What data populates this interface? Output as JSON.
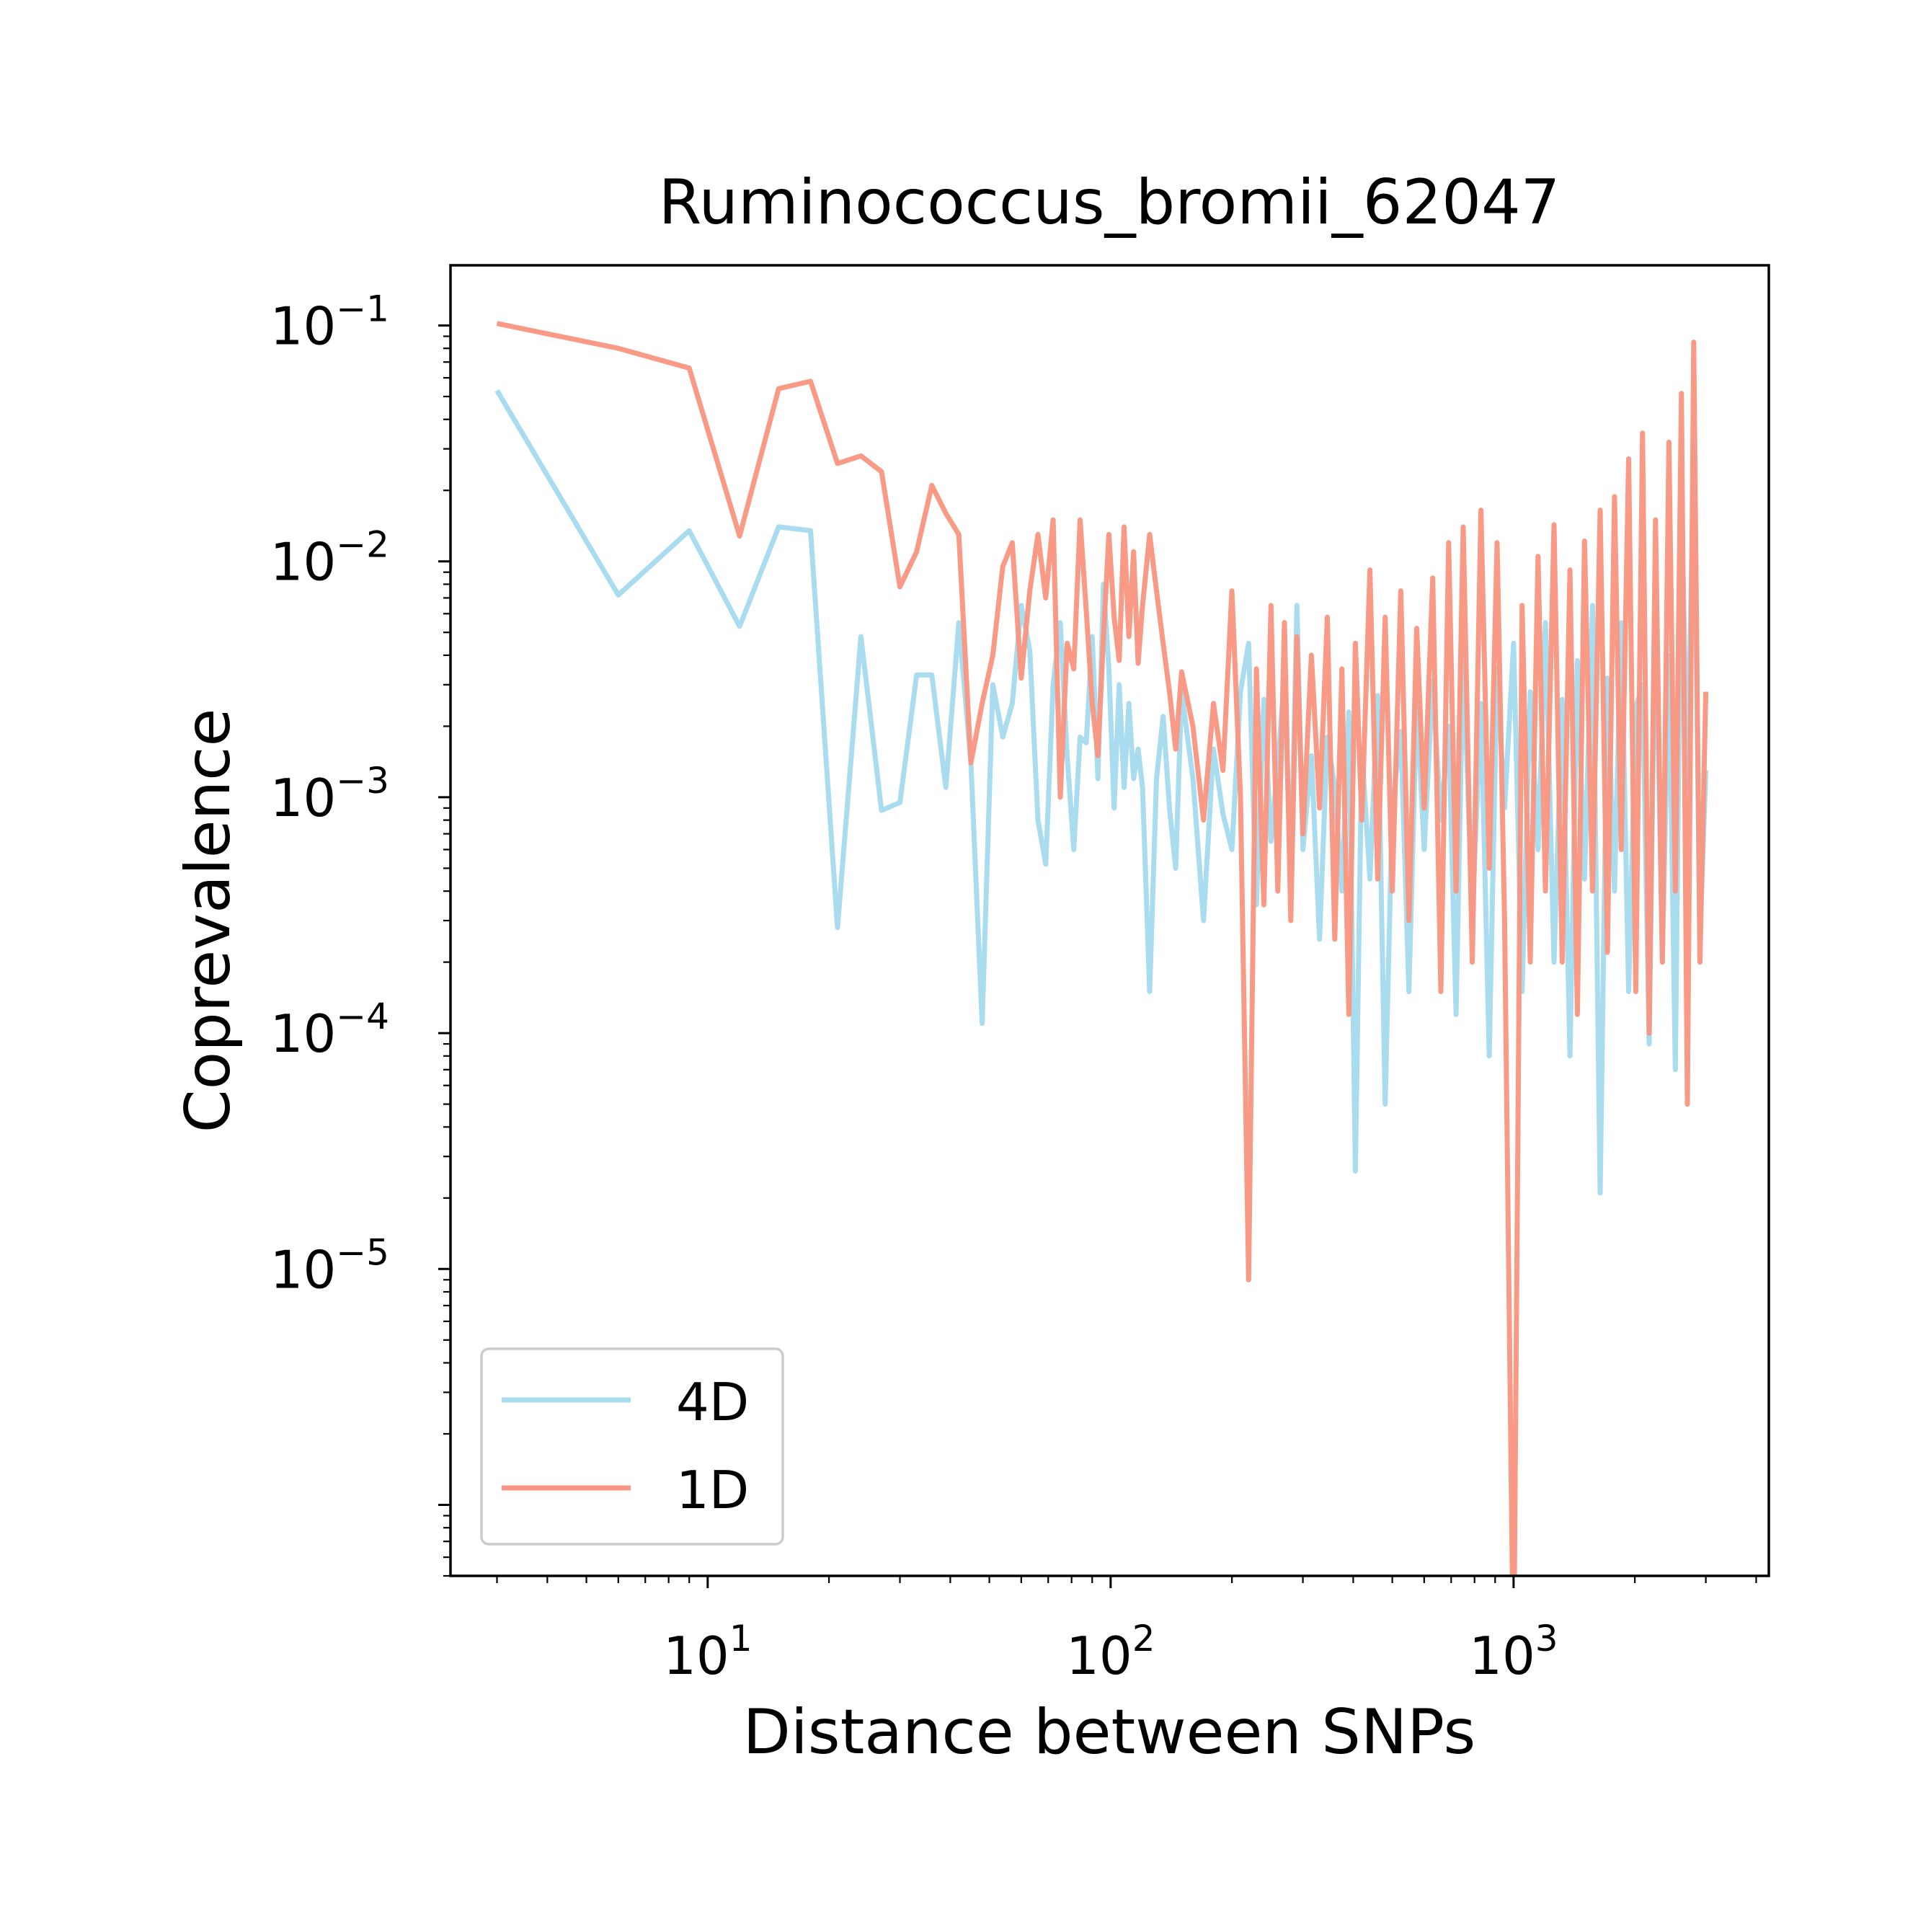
{
  "chart_data": {
    "type": "line",
    "title": "Ruminococcus_bromii_62047",
    "xlabel": "Distance between SNPs",
    "ylabel": "Coprevalence",
    "x_scale": "log",
    "y_scale": "log",
    "xlim": [
      2.3,
      4300
    ],
    "ylim": [
      5e-07,
      0.18
    ],
    "x_ticks": [
      {
        "value": 10,
        "base": "10",
        "exp": "1"
      },
      {
        "value": 100,
        "base": "10",
        "exp": "2"
      },
      {
        "value": 1000,
        "base": "10",
        "exp": "3"
      }
    ],
    "y_ticks": [
      {
        "value": 0.1,
        "base": "10",
        "exp": "−1"
      },
      {
        "value": 0.01,
        "base": "10",
        "exp": "−2"
      },
      {
        "value": 0.001,
        "base": "10",
        "exp": "−3"
      },
      {
        "value": 0.0001,
        "base": "10",
        "exp": "−4"
      },
      {
        "value": 1e-05,
        "base": "10",
        "exp": "−5"
      }
    ],
    "grid": false,
    "legend_position": "lower-left",
    "series": [
      {
        "name": "4D",
        "color": "#a8dcee",
        "x": [
          3,
          6,
          9,
          12,
          15,
          18,
          21,
          24,
          27,
          30,
          33,
          36,
          39,
          42,
          45,
          48,
          51,
          54,
          57,
          60,
          63,
          66,
          69,
          72,
          75,
          78,
          81,
          84,
          87,
          90,
          93,
          96,
          99,
          102,
          105,
          108,
          111,
          114,
          117,
          120,
          125,
          130,
          135,
          140,
          145,
          150,
          160,
          170,
          180,
          190,
          200,
          210,
          220,
          230,
          240,
          250,
          260,
          270,
          280,
          290,
          300,
          315,
          330,
          345,
          360,
          375,
          390,
          405,
          420,
          440,
          460,
          480,
          500,
          525,
          550,
          575,
          600,
          630,
          660,
          690,
          720,
          750,
          790,
          830,
          870,
          910,
          950,
          1000,
          1050,
          1100,
          1150,
          1200,
          1260,
          1320,
          1380,
          1440,
          1500,
          1570,
          1640,
          1710,
          1780,
          1850,
          1930,
          2010,
          2090,
          2170,
          2250,
          2340,
          2430,
          2520,
          2610,
          2700,
          2800,
          2900,
          3000
        ],
        "y": [
          0.053,
          0.0072,
          0.0135,
          0.0053,
          0.014,
          0.0135,
          0.00028,
          0.0048,
          0.00088,
          0.00095,
          0.0033,
          0.0033,
          0.0011,
          0.0055,
          0.0014,
          0.00011,
          0.003,
          0.0018,
          0.0025,
          0.0065,
          0.0042,
          0.0008,
          0.00052,
          0.003,
          0.0055,
          0.0015,
          0.0006,
          0.0018,
          0.0017,
          0.0048,
          0.0012,
          0.008,
          0.0035,
          0.0009,
          0.003,
          0.0011,
          0.0025,
          0.0012,
          0.0016,
          0.0011,
          0.00015,
          0.0012,
          0.0022,
          0.0009,
          0.0005,
          0.0028,
          0.0012,
          0.0003,
          0.0016,
          0.00085,
          0.0006,
          0.0028,
          0.0045,
          0.00035,
          0.0026,
          0.00065,
          0.0014,
          0.0032,
          0.00045,
          0.0065,
          0.0006,
          0.0015,
          0.00025,
          0.0018,
          0.0011,
          0.0004,
          0.0023,
          2.6e-05,
          0.0016,
          0.00045,
          0.0027,
          5e-05,
          0.0009,
          0.0019,
          0.00015,
          0.0026,
          0.0006,
          0.0031,
          0.0008,
          0.002,
          0.00012,
          0.0042,
          0.0003,
          0.0025,
          8e-05,
          0.0035,
          0.0009,
          0.0045,
          0.00015,
          0.0028,
          0.0006,
          0.0055,
          0.0002,
          0.0026,
          8e-05,
          0.0038,
          0.00045,
          0.0065,
          2.1e-05,
          0.0032,
          0.0004,
          0.0055,
          0.00015,
          0.0024,
          0.003,
          9e-05,
          0.0075,
          0.0002,
          0.004,
          7e-05,
          0.02,
          0.0011,
          0.03,
          0.00025,
          0.0013
        ]
      },
      {
        "name": "1D",
        "color": "#f99580",
        "x": [
          3,
          6,
          9,
          12,
          15,
          18,
          21,
          24,
          27,
          30,
          33,
          36,
          39,
          42,
          45,
          48,
          51,
          54,
          57,
          60,
          63,
          66,
          69,
          72,
          75,
          78,
          81,
          84,
          87,
          90,
          93,
          96,
          99,
          102,
          105,
          108,
          111,
          114,
          117,
          120,
          125,
          130,
          135,
          140,
          145,
          150,
          160,
          170,
          180,
          190,
          200,
          210,
          220,
          230,
          240,
          250,
          260,
          270,
          280,
          290,
          300,
          315,
          330,
          345,
          360,
          375,
          390,
          405,
          420,
          440,
          460,
          480,
          500,
          525,
          550,
          575,
          600,
          630,
          660,
          690,
          720,
          750,
          790,
          830,
          870,
          910,
          950,
          1000,
          1050,
          1100,
          1150,
          1200,
          1260,
          1320,
          1380,
          1440,
          1500,
          1570,
          1640,
          1710,
          1780,
          1850,
          1930,
          2010,
          2090,
          2170,
          2250,
          2340,
          2430,
          2520,
          2610,
          2700,
          2800,
          2900,
          3000
        ],
        "y": [
          0.102,
          0.08,
          0.066,
          0.0128,
          0.054,
          0.058,
          0.026,
          0.028,
          0.024,
          0.0078,
          0.011,
          0.021,
          0.016,
          0.013,
          0.0014,
          0.0025,
          0.004,
          0.0095,
          0.012,
          0.0032,
          0.0075,
          0.013,
          0.007,
          0.015,
          0.001,
          0.0045,
          0.0035,
          0.015,
          0.0062,
          0.0025,
          0.0015,
          0.0048,
          0.013,
          0.0058,
          0.0038,
          0.014,
          0.0048,
          0.011,
          0.0037,
          0.0065,
          0.013,
          0.0075,
          0.0045,
          0.0028,
          0.0016,
          0.0034,
          0.002,
          0.0008,
          0.0025,
          0.0013,
          0.0075,
          0.001,
          9e-06,
          0.0035,
          0.00035,
          0.0065,
          0.0004,
          0.0055,
          0.0003,
          0.0048,
          0.0007,
          0.004,
          0.0009,
          0.0058,
          0.00025,
          0.0035,
          0.00012,
          0.0045,
          0.0008,
          0.0092,
          0.00045,
          0.0058,
          0.0004,
          0.0075,
          0.0003,
          0.0052,
          0.0009,
          0.0085,
          0.00015,
          0.012,
          0.0004,
          0.014,
          0.0002,
          0.0165,
          0.0005,
          0.012,
          0.0003,
          1.8e-07,
          0.0065,
          0.0002,
          0.0105,
          0.0004,
          0.0143,
          0.0002,
          0.0092,
          0.00012,
          0.0122,
          0.0004,
          0.0165,
          0.00022,
          0.0188,
          0.0006,
          0.0272,
          0.00015,
          0.035,
          0.0001,
          0.015,
          0.0002,
          0.032,
          0.0004,
          0.0515,
          5e-05,
          0.085,
          0.0002,
          0.0028
        ]
      }
    ]
  }
}
